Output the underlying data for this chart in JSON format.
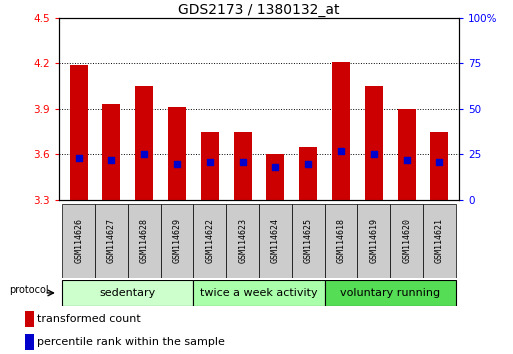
{
  "title": "GDS2173 / 1380132_at",
  "samples": [
    "GSM114626",
    "GSM114627",
    "GSM114628",
    "GSM114629",
    "GSM114622",
    "GSM114623",
    "GSM114624",
    "GSM114625",
    "GSM114618",
    "GSM114619",
    "GSM114620",
    "GSM114621"
  ],
  "red_values": [
    4.19,
    3.93,
    4.05,
    3.91,
    3.75,
    3.75,
    3.6,
    3.65,
    4.21,
    4.05,
    3.9,
    3.75
  ],
  "blue_percentiles": [
    23,
    22,
    25,
    20,
    21,
    21,
    18,
    20,
    27,
    25,
    22,
    21
  ],
  "ymin": 3.3,
  "ymax": 4.5,
  "yticks": [
    3.3,
    3.6,
    3.9,
    4.2,
    4.5
  ],
  "right_yticks": [
    0,
    25,
    50,
    75,
    100
  ],
  "right_yticklabels": [
    "0",
    "25",
    "50",
    "75",
    "100%"
  ],
  "groups": [
    {
      "label": "sedentary",
      "indices": [
        0,
        1,
        2,
        3
      ],
      "color": "#ccffcc"
    },
    {
      "label": "twice a week activity",
      "indices": [
        4,
        5,
        6,
        7
      ],
      "color": "#aaffaa"
    },
    {
      "label": "voluntary running",
      "indices": [
        8,
        9,
        10,
        11
      ],
      "color": "#55dd55"
    }
  ],
  "bar_color": "#cc0000",
  "dot_color": "#0000cc",
  "protocol_label": "protocol",
  "legend1": "transformed count",
  "legend2": "percentile rank within the sample",
  "bar_width": 0.55,
  "dot_size": 22,
  "title_fontsize": 10,
  "tick_fontsize": 7.5,
  "label_fontsize": 8,
  "group_fontsize": 8,
  "sample_fontsize": 6,
  "sample_color": "#cccccc"
}
